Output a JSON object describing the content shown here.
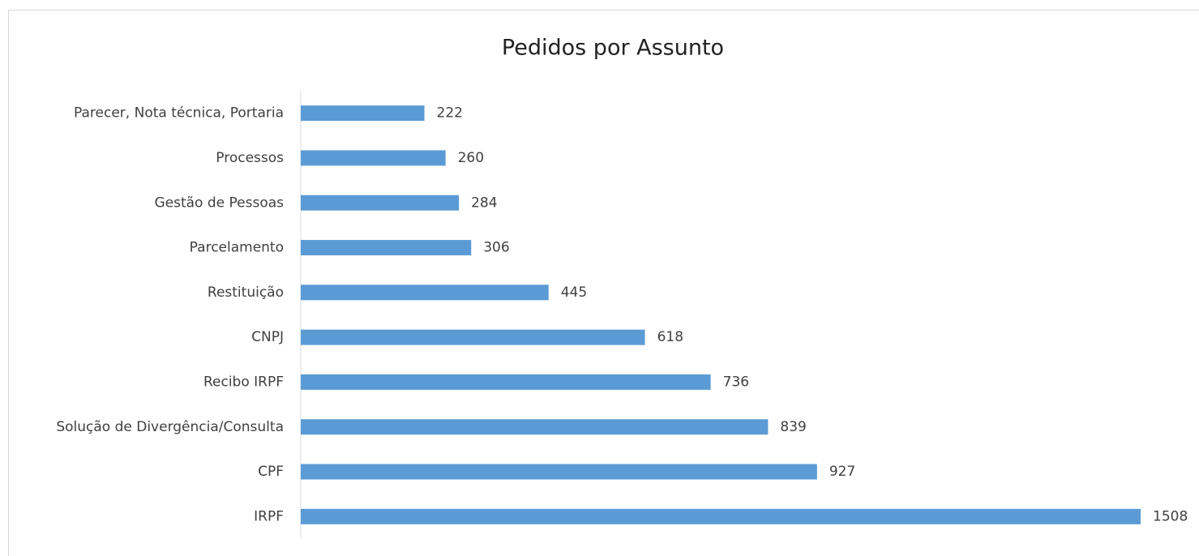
{
  "chart_data": {
    "type": "bar",
    "orientation": "horizontal",
    "title": "Pedidos por Assunto",
    "categories": [
      "Parecer, Nota técnica, Portaria",
      "Processos",
      "Gestão de Pessoas",
      "Parcelamento",
      "Restituição",
      "CNPJ",
      "Recibo IRPF",
      "Solução de Divergência/Consulta",
      "CPF",
      "IRPF"
    ],
    "values": [
      222,
      260,
      284,
      306,
      445,
      618,
      736,
      839,
      927,
      1508
    ],
    "color": "#5b9bd5"
  }
}
